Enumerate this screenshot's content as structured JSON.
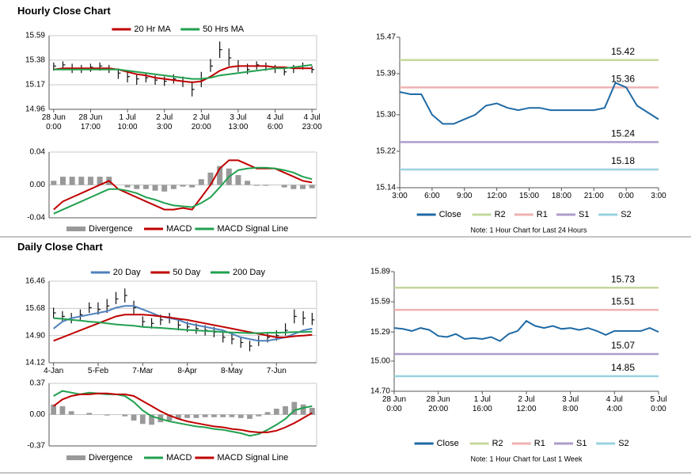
{
  "headings": [
    "Hourly Close Chart",
    "Daily Close Chart"
  ],
  "chart_data": [
    {
      "type": "ohlc",
      "legend": "top",
      "grid": true,
      "categories": [
        "28 Jun\n0:00",
        null,
        null,
        null,
        "28 Jun\n17:00",
        null,
        null,
        null,
        "1 Jul\n10:00",
        null,
        null,
        null,
        "2 Jul\n3:00",
        null,
        null,
        null,
        "2 Jul\n20:00",
        null,
        null,
        null,
        "3 Jul\n13:00",
        null,
        null,
        null,
        "4 Jul\n6:00",
        null,
        null,
        null,
        "4 Jul\n23:00"
      ],
      "high": [
        15.36,
        15.37,
        15.35,
        15.34,
        15.35,
        15.36,
        15.34,
        15.31,
        15.28,
        15.26,
        15.27,
        15.25,
        15.24,
        15.26,
        15.24,
        15.2,
        15.28,
        15.39,
        15.54,
        15.48,
        15.38,
        15.35,
        15.37,
        15.36,
        15.34,
        15.32,
        15.34,
        15.36,
        15.33
      ],
      "low": [
        15.29,
        15.3,
        15.27,
        15.27,
        15.28,
        15.29,
        15.27,
        15.22,
        15.19,
        15.17,
        15.19,
        15.17,
        15.16,
        15.18,
        15.15,
        15.07,
        15.15,
        15.28,
        15.4,
        15.33,
        15.28,
        15.26,
        15.3,
        15.29,
        15.27,
        15.25,
        15.27,
        15.3,
        15.27
      ],
      "close": [
        15.33,
        15.34,
        15.31,
        15.3,
        15.32,
        15.33,
        15.31,
        15.27,
        15.24,
        15.22,
        15.23,
        15.21,
        15.2,
        15.22,
        15.2,
        15.13,
        15.22,
        15.33,
        15.47,
        15.4,
        15.33,
        15.3,
        15.34,
        15.33,
        15.31,
        15.28,
        15.31,
        15.33,
        15.3
      ],
      "series": [
        {
          "name": "20 Hr MA",
          "color": "#c00000",
          "values": [
            15.3,
            15.31,
            15.31,
            15.31,
            15.31,
            15.31,
            15.31,
            15.3,
            15.28,
            15.26,
            15.25,
            15.23,
            15.22,
            15.21,
            15.2,
            15.19,
            15.2,
            15.24,
            15.29,
            15.32,
            15.33,
            15.33,
            15.33,
            15.33,
            15.32,
            15.32,
            15.31,
            15.31,
            15.31
          ]
        },
        {
          "name": "50 Hrs MA",
          "color": "#21a04f",
          "values": [
            15.3,
            15.3,
            15.3,
            15.3,
            15.3,
            15.3,
            15.3,
            15.3,
            15.29,
            15.28,
            15.27,
            15.26,
            15.25,
            15.24,
            15.23,
            15.22,
            15.22,
            15.23,
            15.25,
            15.26,
            15.27,
            15.28,
            15.29,
            15.3,
            15.31,
            15.31,
            15.32,
            15.33,
            15.34
          ]
        }
      ],
      "ylim": [
        14.96,
        15.59
      ],
      "yticks": [
        14.96,
        15.17,
        15.38,
        15.59
      ]
    },
    {
      "type": "combo",
      "legend": "bottom",
      "grid": true,
      "series": [
        {
          "name": "Divergence",
          "type": "bar",
          "color": "#999999",
          "values": [
            0.005,
            0.01,
            0.01,
            0.01,
            0.01,
            0.01,
            0.01,
            0,
            -0.003,
            -0.005,
            -0.005,
            -0.007,
            -0.008,
            -0.005,
            -0.002,
            -0.003,
            0.007,
            0.015,
            0.023,
            0.02,
            0.012,
            0.005,
            -0.001,
            -0.001,
            0,
            -0.003,
            -0.005,
            -0.005,
            -0.004
          ]
        },
        {
          "name": "MACD",
          "type": "line",
          "color": "#c00000",
          "values": [
            -0.03,
            -0.02,
            -0.015,
            -0.01,
            -0.005,
            0,
            0.005,
            -0.005,
            -0.01,
            -0.015,
            -0.02,
            -0.025,
            -0.03,
            -0.03,
            -0.028,
            -0.03,
            -0.015,
            0,
            0.02,
            0.03,
            0.03,
            0.025,
            0.02,
            0.02,
            0.02,
            0.015,
            0.01,
            0.005,
            0.003
          ]
        },
        {
          "name": "MACD Signal Line",
          "type": "line",
          "color": "#21a04f",
          "values": [
            -0.035,
            -0.03,
            -0.025,
            -0.02,
            -0.015,
            -0.01,
            -0.005,
            -0.005,
            -0.007,
            -0.01,
            -0.015,
            -0.018,
            -0.022,
            -0.025,
            -0.026,
            -0.027,
            -0.022,
            -0.015,
            -0.003,
            0.01,
            0.018,
            0.02,
            0.021,
            0.021,
            0.02,
            0.018,
            0.015,
            0.01,
            0.007
          ]
        }
      ],
      "ylim": [
        -0.04,
        0.04
      ],
      "yticks": [
        -0.04,
        {
          "value": 0,
          "label": "0.00"
        },
        0.04
      ]
    },
    {
      "type": "line",
      "legend": "bottom",
      "grid": false,
      "categories": [
        "3:00",
        null,
        null,
        "6:00",
        null,
        null,
        "9:00",
        null,
        null,
        "12:00",
        null,
        null,
        "15:00",
        null,
        null,
        "18:00",
        null,
        null,
        "21:00",
        null,
        null,
        "0:00",
        null,
        null,
        "3:00"
      ],
      "series": [
        {
          "name": "Close",
          "color": "#1f6aa5",
          "values": [
            15.35,
            15.345,
            15.345,
            15.3,
            15.28,
            15.28,
            15.29,
            15.3,
            15.32,
            15.325,
            15.315,
            15.31,
            15.315,
            15.315,
            15.31,
            15.31,
            15.31,
            15.31,
            15.31,
            15.315,
            15.37,
            15.36,
            15.32,
            15.305,
            15.29
          ]
        }
      ],
      "levels": [
        {
          "name": "R2",
          "color": "#c4d89c",
          "value": 15.42
        },
        {
          "name": "R1",
          "color": "#f0b2b2",
          "value": 15.36
        },
        {
          "name": "S1",
          "color": "#ae9ccb",
          "value": 15.24
        },
        {
          "name": "S2",
          "color": "#99d2e0",
          "value": 15.18
        }
      ],
      "note": "Note: 1 Hour Chart for Last 24 Hours",
      "ylim": [
        15.14,
        15.47
      ],
      "yticks": [
        15.14,
        15.22,
        {
          "value": 15.3,
          "label": "15.30"
        },
        15.39,
        15.47
      ]
    },
    {
      "type": "ohlc",
      "legend": "top",
      "grid": true,
      "categories": [
        "4-Jan",
        null,
        null,
        null,
        null,
        "5-Feb",
        null,
        null,
        null,
        null,
        "7-Mar",
        null,
        null,
        null,
        null,
        "8-Apr",
        null,
        null,
        null,
        null,
        "8-May",
        null,
        null,
        null,
        null,
        "7-Jun",
        null,
        null,
        null,
        null
      ],
      "high": [
        15.7,
        15.6,
        15.55,
        15.65,
        15.85,
        15.85,
        15.95,
        16.15,
        16.25,
        15.9,
        15.45,
        15.4,
        15.5,
        15.55,
        15.35,
        15.3,
        15.25,
        15.2,
        15.15,
        15.0,
        14.95,
        14.85,
        14.75,
        14.9,
        15.0,
        15.05,
        15.25,
        15.65,
        15.6,
        15.55
      ],
      "low": [
        15.4,
        15.3,
        15.25,
        15.35,
        15.55,
        15.5,
        15.55,
        15.8,
        15.85,
        15.5,
        15.15,
        15.1,
        15.2,
        15.25,
        15.05,
        15.0,
        14.95,
        14.9,
        14.85,
        14.7,
        14.65,
        14.55,
        14.45,
        14.6,
        14.7,
        14.75,
        14.9,
        15.25,
        15.2,
        15.2
      ],
      "close": [
        15.55,
        15.45,
        15.4,
        15.5,
        15.7,
        15.65,
        15.75,
        15.95,
        16.05,
        15.7,
        15.3,
        15.25,
        15.35,
        15.4,
        15.2,
        15.15,
        15.1,
        15.05,
        15.0,
        14.85,
        14.8,
        14.7,
        14.6,
        14.75,
        14.85,
        14.9,
        15.05,
        15.45,
        15.4,
        15.35
      ],
      "series": [
        {
          "name": "20 Day",
          "color": "#4f81bd",
          "values": [
            15.1,
            15.3,
            15.4,
            15.45,
            15.5,
            15.55,
            15.6,
            15.7,
            15.75,
            15.75,
            15.65,
            15.55,
            15.45,
            15.4,
            15.35,
            15.25,
            15.2,
            15.15,
            15.1,
            15.05,
            14.95,
            14.85,
            14.8,
            14.75,
            14.75,
            14.8,
            14.85,
            14.95,
            15.05,
            15.1
          ]
        },
        {
          "name": "50 Day",
          "color": "#c00000",
          "values": [
            14.75,
            14.85,
            14.95,
            15.05,
            15.15,
            15.25,
            15.35,
            15.45,
            15.5,
            15.5,
            15.5,
            15.48,
            15.45,
            15.42,
            15.38,
            15.35,
            15.3,
            15.25,
            15.2,
            15.15,
            15.1,
            15.05,
            15.0,
            14.95,
            14.9,
            14.85,
            14.85,
            14.88,
            14.9,
            14.92
          ]
        },
        {
          "name": "200 Day",
          "color": "#21a04f",
          "values": [
            15.4,
            15.38,
            15.35,
            15.33,
            15.3,
            15.28,
            15.25,
            15.22,
            15.2,
            15.18,
            15.15,
            15.13,
            15.12,
            15.1,
            15.08,
            15.06,
            15.05,
            15.03,
            15.02,
            15.0,
            14.99,
            14.98,
            14.97,
            14.97,
            14.98,
            14.98,
            14.99,
            15.0,
            15.0,
            15.01
          ]
        }
      ],
      "ylim": [
        14.12,
        16.46
      ],
      "yticks": [
        14.12,
        {
          "value": 14.9,
          "label": "14.90"
        },
        15.68,
        16.46
      ]
    },
    {
      "type": "combo",
      "legend": "bottom",
      "grid": true,
      "series": [
        {
          "name": "Divergence",
          "type": "bar",
          "color": "#999999",
          "values": [
            0.12,
            0.1,
            0.04,
            0,
            0.02,
            0,
            -0.01,
            0,
            -0.02,
            -0.07,
            -0.11,
            -0.12,
            -0.09,
            -0.07,
            -0.05,
            -0.04,
            -0.04,
            -0.03,
            -0.03,
            -0.03,
            -0.03,
            -0.04,
            -0.05,
            -0.02,
            0.03,
            0.07,
            0.1,
            0.15,
            0.12,
            0.08
          ]
        },
        {
          "name": "MACD",
          "type": "line",
          "color": "#21a04f",
          "values": [
            0.22,
            0.28,
            0.26,
            0.24,
            0.26,
            0.25,
            0.24,
            0.24,
            0.22,
            0.15,
            0.05,
            -0.02,
            -0.05,
            -0.08,
            -0.1,
            -0.12,
            -0.14,
            -0.15,
            -0.17,
            -0.18,
            -0.2,
            -0.22,
            -0.25,
            -0.23,
            -0.18,
            -0.12,
            -0.05,
            0.05,
            0.08,
            0.1
          ]
        },
        {
          "name": "MACD Signal Line",
          "type": "line",
          "color": "#c00000",
          "values": [
            0.1,
            0.18,
            0.22,
            0.24,
            0.24,
            0.25,
            0.25,
            0.24,
            0.24,
            0.22,
            0.16,
            0.1,
            0.04,
            -0.01,
            -0.05,
            -0.08,
            -0.1,
            -0.12,
            -0.14,
            -0.15,
            -0.17,
            -0.18,
            -0.2,
            -0.21,
            -0.21,
            -0.19,
            -0.15,
            -0.1,
            -0.04,
            0.02
          ]
        }
      ],
      "ylim": [
        -0.37,
        0.37
      ],
      "yticks": [
        -0.37,
        {
          "value": 0,
          "label": "0.00"
        },
        0.37
      ]
    },
    {
      "type": "line",
      "legend": "bottom",
      "grid": false,
      "categories": [
        "28 Jun\n0:00",
        null,
        null,
        null,
        null,
        "28 Jun\n20:00",
        null,
        null,
        null,
        null,
        "1 Jul\n16:00",
        null,
        null,
        null,
        null,
        "2 Jul\n12:00",
        null,
        null,
        null,
        null,
        "3 Jul\n8:00",
        null,
        null,
        null,
        null,
        "4 Jul\n4:00",
        null,
        null,
        null,
        null,
        "5 Jul\n0:00"
      ],
      "series": [
        {
          "name": "Close",
          "color": "#1f6aa5",
          "values": [
            15.33,
            15.32,
            15.3,
            15.33,
            15.31,
            15.25,
            15.24,
            15.27,
            15.22,
            15.23,
            15.22,
            15.24,
            15.2,
            15.27,
            15.3,
            15.4,
            15.35,
            15.33,
            15.35,
            15.32,
            15.33,
            15.31,
            15.33,
            15.3,
            15.26,
            15.3,
            15.3,
            15.3,
            15.3,
            15.33,
            15.29
          ]
        }
      ],
      "levels": [
        {
          "name": "R2",
          "color": "#c4d89c",
          "value": 15.73
        },
        {
          "name": "R1",
          "color": "#f0b2b2",
          "value": 15.51
        },
        {
          "name": "S1",
          "color": "#ae9ccb",
          "value": 15.07
        },
        {
          "name": "S2",
          "color": "#99d2e0",
          "value": 14.85
        }
      ],
      "note": "Note: 1 Hour Chart for Last 1 Week",
      "ylim": [
        14.7,
        15.89
      ],
      "yticks": [
        {
          "value": 14.7,
          "label": "14.70"
        },
        {
          "value": 15.0,
          "label": "15.00"
        },
        15.29,
        15.59,
        15.89
      ]
    }
  ]
}
